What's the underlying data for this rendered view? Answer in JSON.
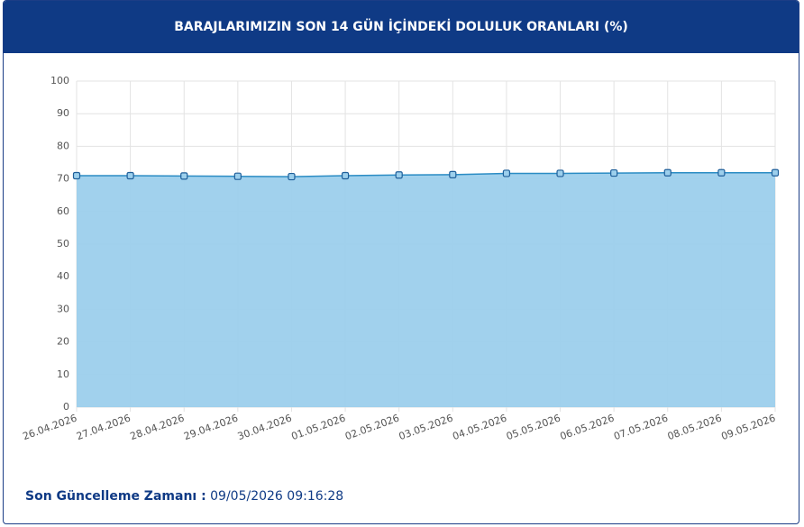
{
  "chart_data": {
    "type": "area",
    "title": "BARAJLARIMIZIN SON 14 GÜN İÇİNDEKİ DOLULUK ORANLARI (%)",
    "categories": [
      "26.04.2026",
      "27.04.2026",
      "28.04.2026",
      "29.04.2026",
      "30.04.2026",
      "01.05.2026",
      "02.05.2026",
      "03.05.2026",
      "04.05.2026",
      "05.05.2026",
      "06.05.2026",
      "07.05.2026",
      "08.05.2026",
      "09.05.2026"
    ],
    "values": [
      71.0,
      71.0,
      70.9,
      70.8,
      70.7,
      71.0,
      71.2,
      71.3,
      71.7,
      71.7,
      71.8,
      71.9,
      71.9,
      71.9
    ],
    "color": "#2b8cc4",
    "area_color": "#9ccfec",
    "ylim": [
      0,
      100
    ],
    "yticks": [
      0,
      10,
      20,
      30,
      40,
      50,
      60,
      70,
      80,
      90,
      100
    ],
    "grid": true
  },
  "footer": {
    "label": "Son Güncelleme Zamanı :",
    "value": "09/05/2026 09:16:28"
  }
}
